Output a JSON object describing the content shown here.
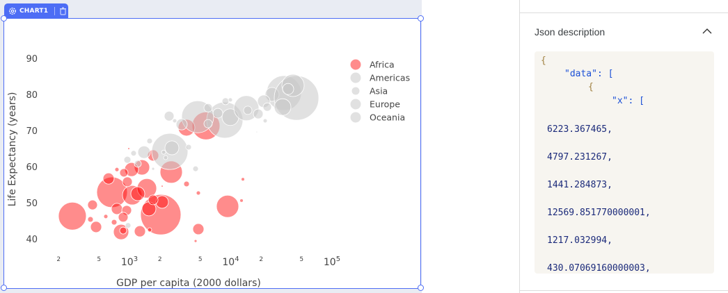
{
  "canvas": {
    "chart_tab_label": "CHART1",
    "icons": [
      "gear-icon",
      "trash-icon"
    ],
    "accent_color": "#4d6df5"
  },
  "panel": {
    "title": "Json description",
    "collapse_icon": "chevron-up-icon",
    "code_lines": [
      "{",
      "\"data\": [",
      "{",
      "\"x\": ["
    ],
    "code_numbers": [
      "6223.367465,",
      "4797.231267,",
      "1441.284873,",
      "12569.851770000001,",
      "1217.032994,",
      "430.07069160000003,"
    ]
  },
  "chart_data": {
    "type": "scatter",
    "mode": "bubble",
    "xlabel": "GDP per capita (2000 dollars)",
    "ylabel": "Life Expectancy (years)",
    "xscale": "log",
    "xlim": [
      150,
      130000
    ],
    "ylim": [
      35,
      95
    ],
    "x_ticks": [
      {
        "value": 200,
        "label": "2",
        "major": false
      },
      {
        "value": 500,
        "label": "5",
        "major": false
      },
      {
        "value": 1000,
        "label": "10",
        "sup": "3",
        "major": true
      },
      {
        "value": 2000,
        "label": "2",
        "major": false
      },
      {
        "value": 5000,
        "label": "5",
        "major": false
      },
      {
        "value": 10000,
        "label": "10",
        "sup": "4",
        "major": true
      },
      {
        "value": 20000,
        "label": "2",
        "major": false
      },
      {
        "value": 50000,
        "label": "5",
        "major": false
      },
      {
        "value": 100000,
        "label": "10",
        "sup": "5",
        "major": true
      }
    ],
    "y_ticks": [
      "40",
      "50",
      "60",
      "70",
      "80",
      "90"
    ],
    "grid": false,
    "legend_position": "top-right",
    "legend": [
      "Africa",
      "Americas",
      "Asia",
      "Europe",
      "Oceania"
    ],
    "colors": {
      "Africa": "#ff0000",
      "Americas": "#c8c8c8",
      "Asia": "#c8c8c8",
      "Europe": "#c8c8c8",
      "Oceania": "#c8c8c8"
    },
    "series": [
      {
        "name": "Africa",
        "points": [
          [
            273,
            46.3,
            400
          ],
          [
            432,
            49.4,
            49
          ],
          [
            412,
            45.4,
            16
          ],
          [
            468,
            43.3,
            64
          ],
          [
            584,
            46.2,
            9
          ],
          [
            673,
            52.9,
            484
          ],
          [
            622,
            56.7,
            64
          ],
          [
            752,
            59.2,
            9
          ],
          [
            881,
            58.3,
            36
          ],
          [
            1049,
            59.2,
            100
          ],
          [
            1330,
            59.8,
            121
          ],
          [
            954,
            55.8,
            49
          ],
          [
            1065,
            52.1,
            196
          ],
          [
            1209,
            52.5,
            100
          ],
          [
            1486,
            54.0,
            196
          ],
          [
            752,
            48.3,
            64
          ],
          [
            939,
            47.9,
            49
          ],
          [
            867,
            46.0,
            49
          ],
          [
            706,
            44.6,
            16
          ],
          [
            827,
            41.9,
            121
          ],
          [
            867,
            42.3,
            25
          ],
          [
            1268,
            42.1,
            64
          ],
          [
            1582,
            42.5,
            9
          ],
          [
            2038,
            46.7,
            841
          ],
          [
            1557,
            48.3,
            100
          ],
          [
            2104,
            50.2,
            81
          ],
          [
            1713,
            50.8,
            49
          ],
          [
            2585,
            58.5,
            256
          ],
          [
            1713,
            63.1,
            64
          ],
          [
            3661,
            55.2,
            16
          ],
          [
            4791,
            52.7,
            9
          ],
          [
            4791,
            42.7,
            64
          ],
          [
            4498,
            39.4,
            4
          ],
          [
            9311,
            49.0,
            256
          ],
          [
            12785,
            50.6,
            6
          ],
          [
            13196,
            56.5,
            6
          ],
          [
            984,
            65.0,
            2
          ],
          [
            2104,
            54.6,
            2
          ],
          [
            5702,
            71.3,
            400
          ],
          [
            3661,
            70.8,
            144
          ]
        ]
      },
      {
        "name": "Americas",
        "points": [
          [
            2465,
            74.0,
            49
          ],
          [
            2798,
            72.7,
            9
          ],
          [
            4716,
            73.8,
            529
          ],
          [
            5980,
            76.3,
            36
          ],
          [
            3278,
            71.7,
            64
          ],
          [
            8742,
            72.9,
            676
          ],
          [
            7463,
            74.8,
            49
          ],
          [
            5980,
            71.9,
            36
          ],
          [
            9922,
            73.7,
            144
          ],
          [
            33560,
            80.4,
            625
          ],
          [
            25640,
            80.0,
            100
          ]
        ]
      },
      {
        "name": "Asia",
        "points": [
          [
            2503,
            64.2,
            676
          ],
          [
            2625,
            65.2,
            100
          ],
          [
            1394,
            64.0,
            81
          ],
          [
            954,
            61.9,
            25
          ],
          [
            1099,
            63.7,
            16
          ],
          [
            1209,
            60.8,
            25
          ],
          [
            1713,
            59.4,
            4
          ],
          [
            2277,
            62.5,
            9
          ],
          [
            3839,
            65.4,
            16
          ],
          [
            4498,
            59.4,
            16
          ],
          [
            969,
            43.7,
            16
          ],
          [
            1582,
            67.1,
            16
          ],
          [
            2177,
            64.0,
            9
          ],
          [
            44620,
            79.0,
            1024
          ],
          [
            18105,
            69.6,
            1
          ],
          [
            8882,
            78.1,
            25
          ]
        ]
      },
      {
        "name": "Europe",
        "points": [
          [
            9922,
            78.5,
            9
          ],
          [
            14275,
            76.2,
            324
          ],
          [
            14735,
            75.6,
            36
          ],
          [
            18688,
            74.6,
            49
          ],
          [
            21885,
            72.7,
            9
          ],
          [
            21204,
            78.1,
            81
          ],
          [
            36900,
            81.5,
            64
          ],
          [
            41220,
            82.5,
            256
          ],
          [
            32510,
            76.5,
            144
          ],
          [
            22950,
            76.5,
            36
          ]
        ]
      },
      {
        "name": "Oceania",
        "points": []
      }
    ]
  }
}
